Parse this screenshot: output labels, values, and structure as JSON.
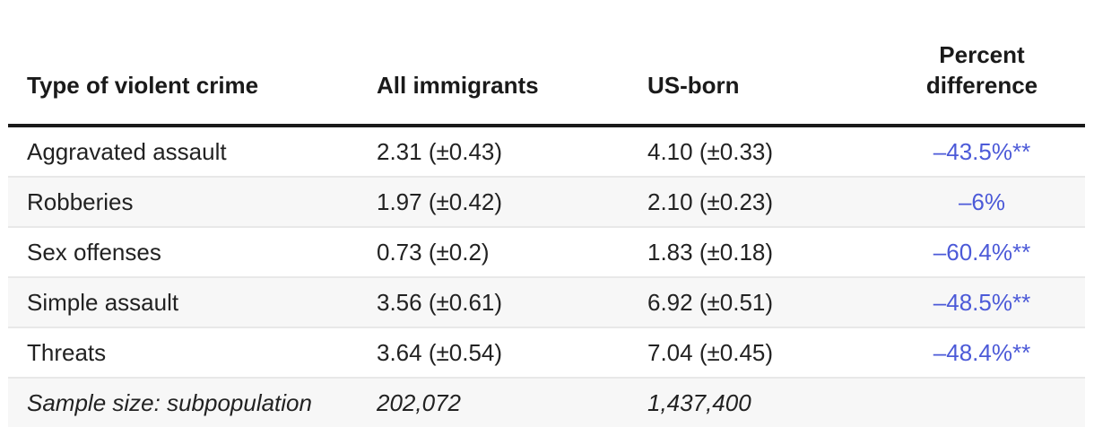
{
  "page": {
    "background": "#ffffff",
    "accent_blue": "#4c5ad8",
    "header_color": "#1a1a1a",
    "stripe_color": "#f7f7f7",
    "divider_color": "#e8e8e8",
    "significance_note_marker": "**"
  },
  "table": {
    "columns": [
      {
        "label": "Type of violent crime",
        "align": "left"
      },
      {
        "label": "All immigrants",
        "align": "left"
      },
      {
        "label": "US-born",
        "align": "left"
      },
      {
        "label": "Percent difference",
        "align": "center"
      }
    ],
    "rows": [
      {
        "crime": "Aggravated assault",
        "all_immigrants": "2.31 (±0.43)",
        "us_born": "4.10 (±0.33)",
        "percent_difference": "–43.5%**"
      },
      {
        "crime": "Robberies",
        "all_immigrants": "1.97 (±0.42)",
        "us_born": "2.10 (±0.23)",
        "percent_difference": "–6%"
      },
      {
        "crime": "Sex offenses",
        "all_immigrants": "0.73 (±0.2)",
        "us_born": "1.83 (±0.18)",
        "percent_difference": "–60.4%**"
      },
      {
        "crime": "Simple assault",
        "all_immigrants": "3.56 (±0.61)",
        "us_born": "6.92 (±0.51)",
        "percent_difference": "–48.5%**"
      },
      {
        "crime": "Threats",
        "all_immigrants": "3.64 (±0.54)",
        "us_born": "7.04 (±0.45)",
        "percent_difference": "–48.4%**"
      }
    ],
    "sample_size_row": {
      "label": "Sample size: subpopulation",
      "all_immigrants": "202,072",
      "us_born": "1,437,400",
      "percent_difference": ""
    }
  },
  "chart_data": {
    "type": "table",
    "title": "",
    "columns": [
      "Type of violent crime",
      "All immigrants",
      "US-born",
      "Percent difference"
    ],
    "rows": [
      [
        "Aggravated assault",
        "2.31 (±0.43)",
        "4.10 (±0.33)",
        "–43.5%**"
      ],
      [
        "Robberies",
        "1.97 (±0.42)",
        "2.10 (±0.23)",
        "–6%"
      ],
      [
        "Sex offenses",
        "0.73 (±0.2)",
        "1.83 (±0.18)",
        "–60.4%**"
      ],
      [
        "Simple assault",
        "3.56 (±0.61)",
        "6.92 (±0.51)",
        "–48.5%**"
      ],
      [
        "Threats",
        "3.64 (±0.54)",
        "7.04 (±0.45)",
        "–48.4%**"
      ],
      [
        "Sample size: subpopulation",
        "202,072",
        "1,437,400",
        ""
      ]
    ],
    "series": [
      {
        "name": "All immigrants",
        "values": [
          2.31,
          1.97,
          0.73,
          3.56,
          3.64
        ],
        "margins_of_error": [
          0.43,
          0.42,
          0.2,
          0.61,
          0.54
        ]
      },
      {
        "name": "US-born",
        "values": [
          4.1,
          2.1,
          1.83,
          6.92,
          7.04
        ],
        "margins_of_error": [
          0.33,
          0.23,
          0.18,
          0.51,
          0.45
        ]
      },
      {
        "name": "Percent difference",
        "values": [
          -43.5,
          -6,
          -60.4,
          -48.5,
          -48.4
        ]
      }
    ],
    "categories": [
      "Aggravated assault",
      "Robberies",
      "Sex offenses",
      "Simple assault",
      "Threats"
    ],
    "sample_sizes": {
      "All immigrants": 202072,
      "US-born": 1437400
    },
    "layout": {
      "striped_rows": true,
      "percent_difference_color": "#4c5ad8",
      "header_rule": "thick-black"
    }
  }
}
